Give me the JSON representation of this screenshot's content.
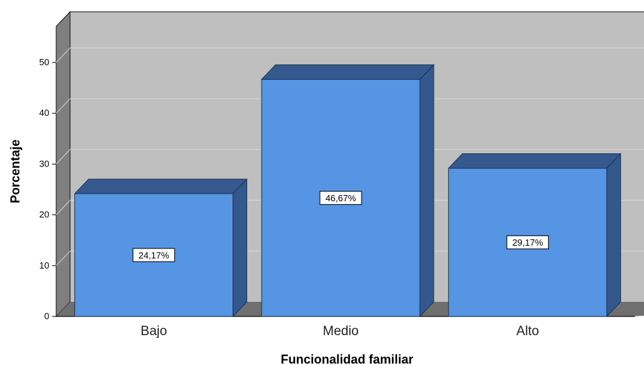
{
  "chart_data": {
    "type": "bar",
    "style": "3d",
    "categories": [
      "Bajo",
      "Medio",
      "Alto"
    ],
    "values": [
      24.17,
      46.67,
      29.17
    ],
    "data_labels": [
      "24,17%",
      "46,67%",
      "29,17%"
    ],
    "title": "",
    "xlabel": "Funcionalidad familiar",
    "ylabel": "Porcentaje",
    "ylim": [
      0,
      50
    ],
    "yticks": [
      "0",
      "10",
      "20",
      "30",
      "40",
      "50"
    ],
    "grid": true,
    "legend": "none",
    "colors": {
      "bar_front": "#5694e4",
      "bar_top": "#35598e",
      "bar_side": "#34588d",
      "wall": "#bfbfbf",
      "wall_side": "#7f7f7f",
      "floor": "#6f6f6f",
      "gridline": "#d6d6d6"
    }
  }
}
